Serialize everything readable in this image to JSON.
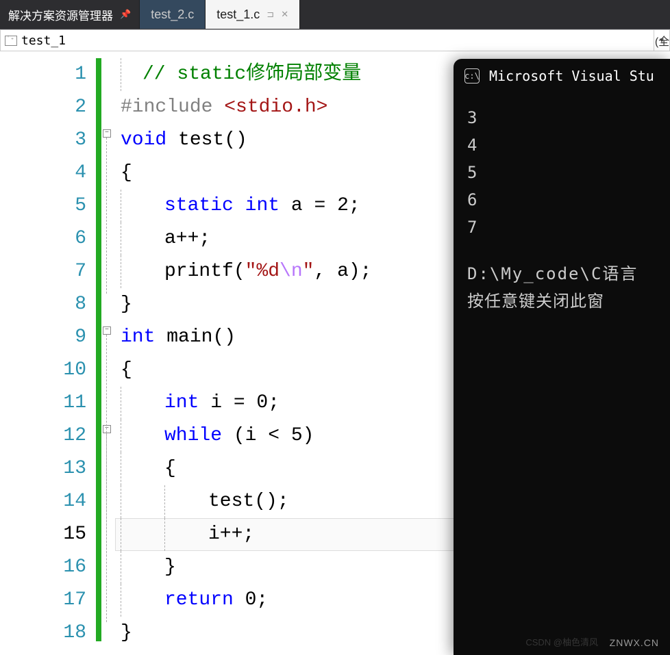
{
  "tabs": {
    "solution_explorer": "解决方案资源管理器",
    "inactive": "test_2.c",
    "active": "test_1.c"
  },
  "file_selector": "test_1",
  "right_edge_text": "(全",
  "code": {
    "lines": [
      {
        "num": 1,
        "tokens": [
          {
            "t": "c-comment",
            "v": "// static修饰局部变量"
          }
        ],
        "indent": 1
      },
      {
        "num": 2,
        "tokens": [
          {
            "t": "c-include",
            "v": "#include "
          },
          {
            "t": "c-anglebr",
            "v": "<stdio.h>"
          }
        ],
        "indent": 0
      },
      {
        "num": 3,
        "tokens": [
          {
            "t": "c-keyword",
            "v": "void"
          },
          {
            "t": "c-plain",
            "v": " test()"
          }
        ],
        "indent": 0,
        "fold": true
      },
      {
        "num": 4,
        "tokens": [
          {
            "t": "c-plain",
            "v": "{"
          }
        ],
        "indent": 0
      },
      {
        "num": 5,
        "tokens": [
          {
            "t": "c-keyword",
            "v": "static"
          },
          {
            "t": "c-plain",
            "v": " "
          },
          {
            "t": "c-keyword",
            "v": "int"
          },
          {
            "t": "c-plain",
            "v": " a = 2;"
          }
        ],
        "indent": 2
      },
      {
        "num": 6,
        "tokens": [
          {
            "t": "c-plain",
            "v": "a++;"
          }
        ],
        "indent": 2
      },
      {
        "num": 7,
        "tokens": [
          {
            "t": "c-plain",
            "v": "printf("
          },
          {
            "t": "c-string",
            "v": "\"%d"
          },
          {
            "t": "c-escape",
            "v": "\\n"
          },
          {
            "t": "c-string",
            "v": "\""
          },
          {
            "t": "c-plain",
            "v": ", a);"
          }
        ],
        "indent": 2
      },
      {
        "num": 8,
        "tokens": [
          {
            "t": "c-plain",
            "v": "}"
          }
        ],
        "indent": 0
      },
      {
        "num": 9,
        "tokens": [
          {
            "t": "c-keyword",
            "v": "int"
          },
          {
            "t": "c-plain",
            "v": " main()"
          }
        ],
        "indent": 0,
        "fold": true
      },
      {
        "num": 10,
        "tokens": [
          {
            "t": "c-plain",
            "v": "{"
          }
        ],
        "indent": 0
      },
      {
        "num": 11,
        "tokens": [
          {
            "t": "c-keyword",
            "v": "int"
          },
          {
            "t": "c-plain",
            "v": " i = 0;"
          }
        ],
        "indent": 2
      },
      {
        "num": 12,
        "tokens": [
          {
            "t": "c-keyword",
            "v": "while"
          },
          {
            "t": "c-plain",
            "v": " (i < 5)"
          }
        ],
        "indent": 2,
        "fold": true
      },
      {
        "num": 13,
        "tokens": [
          {
            "t": "c-plain",
            "v": "{"
          }
        ],
        "indent": 2
      },
      {
        "num": 14,
        "tokens": [
          {
            "t": "c-plain",
            "v": "test();"
          }
        ],
        "indent": 4
      },
      {
        "num": 15,
        "tokens": [
          {
            "t": "c-plain",
            "v": "i++;"
          }
        ],
        "indent": 4,
        "current": true
      },
      {
        "num": 16,
        "tokens": [
          {
            "t": "c-plain",
            "v": "}"
          }
        ],
        "indent": 2
      },
      {
        "num": 17,
        "tokens": [
          {
            "t": "c-keyword",
            "v": "return"
          },
          {
            "t": "c-plain",
            "v": " 0;"
          }
        ],
        "indent": 2
      },
      {
        "num": 18,
        "tokens": [
          {
            "t": "c-plain",
            "v": "}"
          }
        ],
        "indent": 0
      }
    ],
    "colors": {
      "comment": "#008000",
      "keyword": "#0000ff",
      "include": "#808080",
      "string": "#a31515",
      "escape": "#b776fb",
      "plain": "#000000",
      "line_number": "#2b91af",
      "change_bar": "#22aa22"
    },
    "font_size": 28,
    "line_height": 48
  },
  "console": {
    "title": "Microsoft Visual Stu",
    "output": [
      "3",
      "4",
      "5",
      "6",
      "7"
    ],
    "path": "D:\\My_code\\C语言",
    "prompt": "按任意键关闭此窗",
    "bg": "#0c0c0c",
    "fg": "#cccccc"
  },
  "watermark": {
    "main": "ZNWX.CN",
    "sub": "CSDN @柚色清风"
  }
}
